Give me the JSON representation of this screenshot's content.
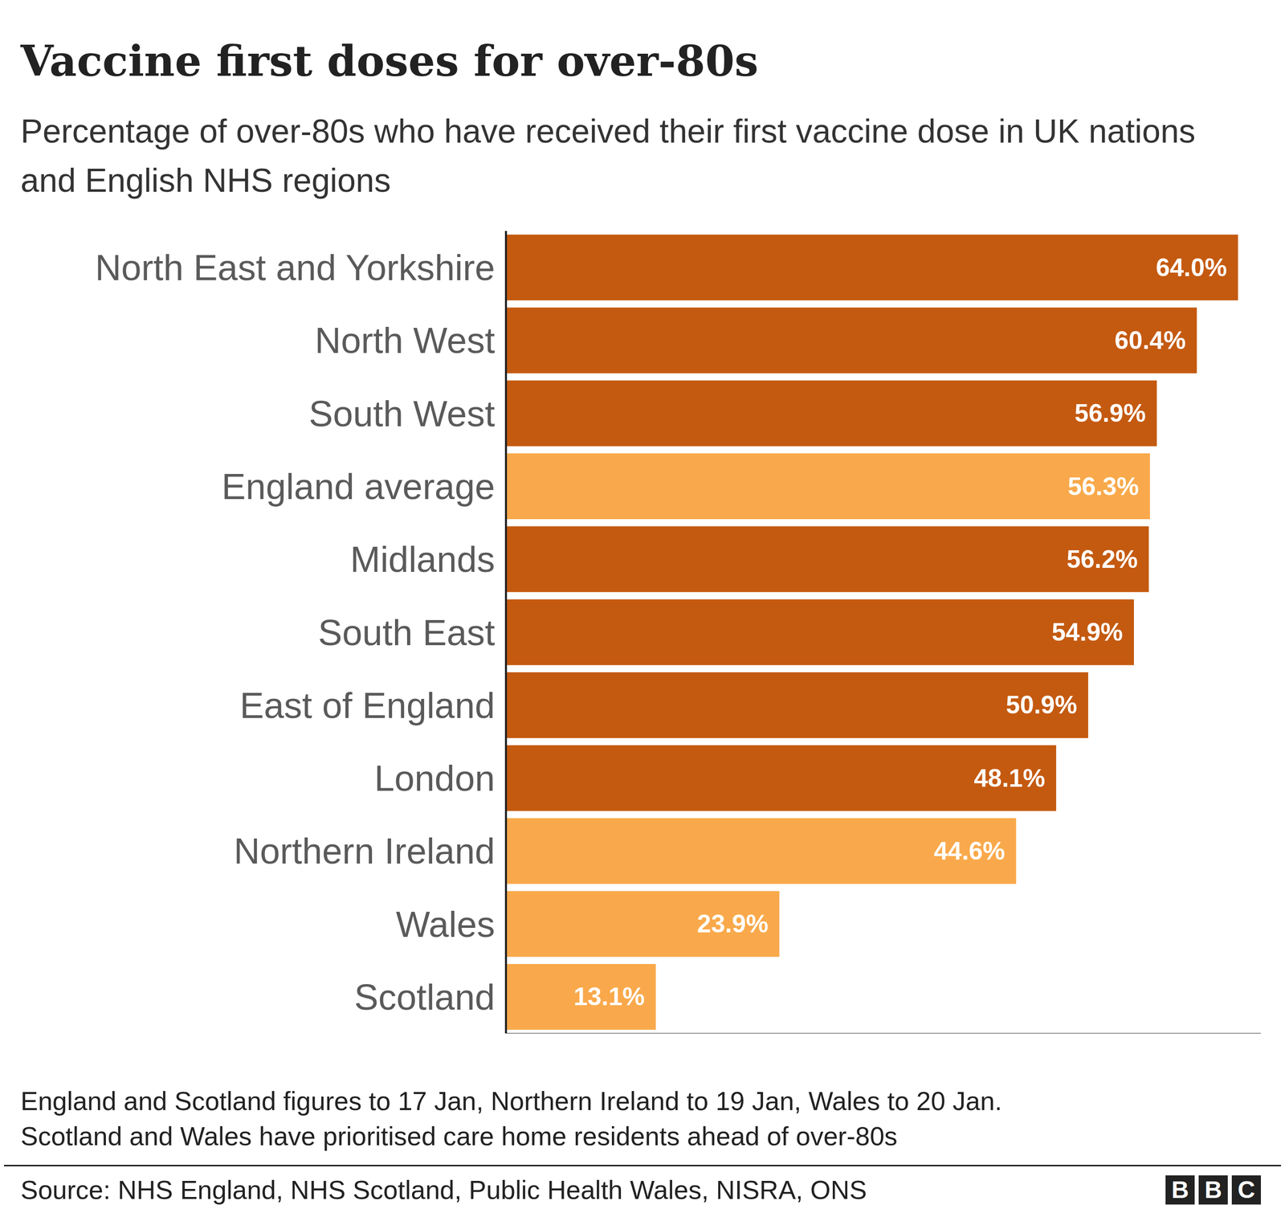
{
  "chart_data": {
    "type": "bar",
    "title": "Vaccine first doses for over-80s",
    "subtitle": "Percentage of over-80s who have received their first vaccine dose in UK nations and English NHS regions",
    "categories": [
      "North East and Yorkshire",
      "North West",
      "South West",
      "England average",
      "Midlands",
      "South East",
      "East of England",
      "London",
      "Northern Ireland",
      "Wales",
      "Scotland"
    ],
    "values": [
      64.0,
      60.4,
      56.9,
      56.3,
      56.2,
      54.9,
      50.9,
      48.1,
      44.6,
      23.9,
      13.1
    ],
    "value_labels": [
      "64.0%",
      "60.4%",
      "56.9%",
      "56.3%",
      "56.2%",
      "54.9%",
      "50.9%",
      "48.1%",
      "44.6%",
      "23.9%",
      "13.1%"
    ],
    "colors": [
      "#c45a10",
      "#c45a10",
      "#c45a10",
      "#f9a94b",
      "#c45a10",
      "#c45a10",
      "#c45a10",
      "#c45a10",
      "#f9a94b",
      "#f9a94b",
      "#f9a94b"
    ],
    "orientation": "horizontal",
    "data_labels": true,
    "tick_labels": "y",
    "grid": false,
    "xlim": [
      0,
      66
    ],
    "xticks": [],
    "annotations": [
      "England and Scotland figures to 17 Jan, Northern Ireland to 19 Jan, Wales to 20 Jan.",
      "Scotland and Wales have prioritised care home residents ahead of over-80s"
    ],
    "source": "Source: NHS England, NHS Scotland, Public Health Wales, NISRA, ONS",
    "logo": "BBC"
  }
}
